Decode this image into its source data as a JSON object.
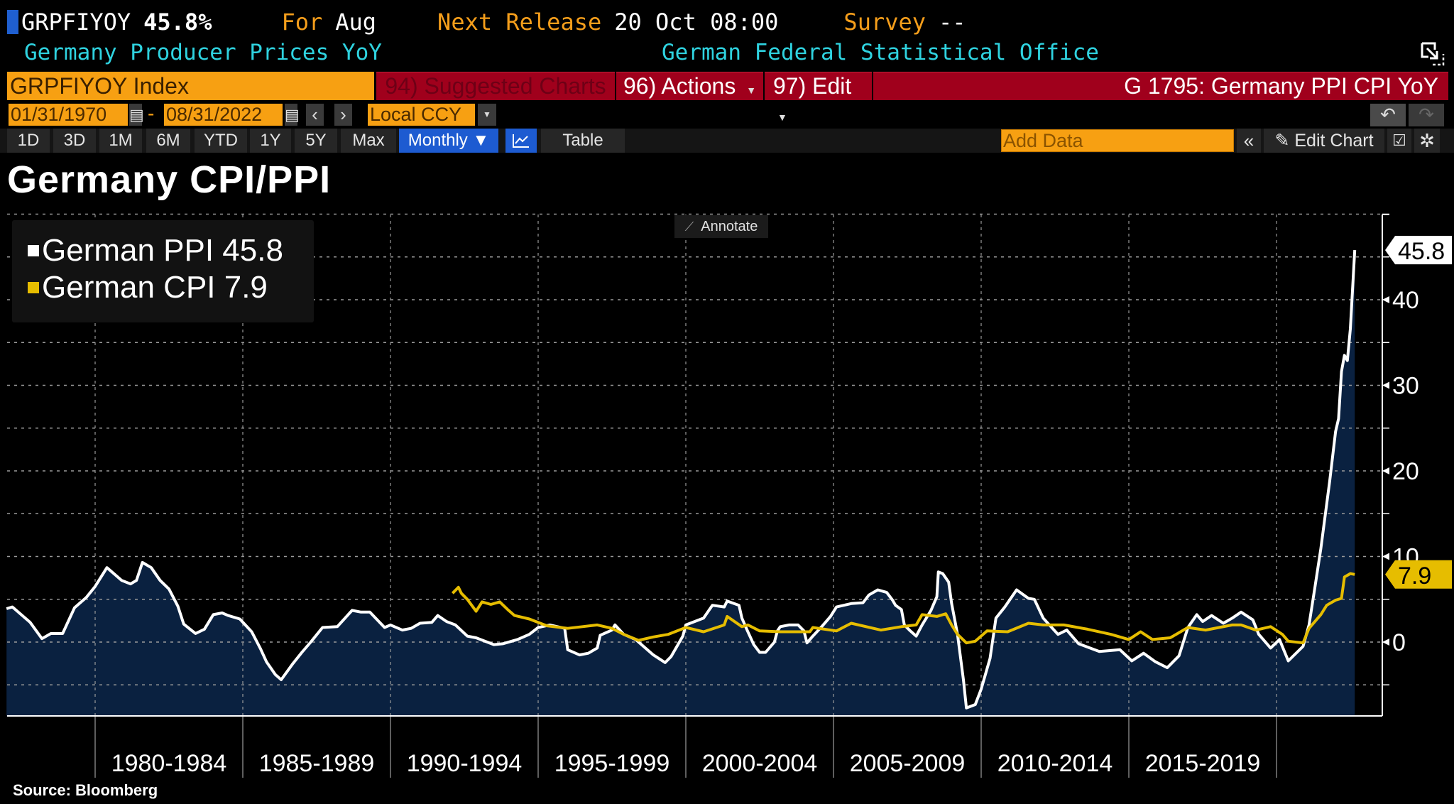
{
  "header": {
    "ticker": "GRPFIYOY",
    "last_value": "45.8%",
    "for_label": "For",
    "for_period": "Aug",
    "next_release_label": "Next Release",
    "next_release_value": "20 Oct 08:00",
    "survey_label": "Survey",
    "survey_value": "--",
    "description": "Germany Producer Prices YoY",
    "source_org": "German Federal Statistical Office"
  },
  "command_bar": {
    "security": "GRPFIYOY Index",
    "suggested_charts": "94) Suggested Charts",
    "actions": "96) Actions",
    "edit": "97) Edit",
    "chart_id_title": "G 1795: Germany PPI CPI YoY"
  },
  "date_bar": {
    "start_date": "01/31/1970",
    "separator": "-",
    "end_date": "08/31/2022",
    "currency": "Local CCY"
  },
  "period_bar": {
    "buttons": [
      "1D",
      "3D",
      "1M",
      "6M",
      "YTD",
      "1Y",
      "5Y",
      "Max"
    ],
    "frequency": "Monthly ▼",
    "table": "Table",
    "add_data_placeholder": "Add Data",
    "edit_chart": "Edit Chart"
  },
  "annotate": "Annotate",
  "source": "Source: Bloomberg",
  "colors": {
    "ppi": "#ffffff",
    "cpi": "#e6bd00",
    "fill": "#0a2140",
    "accent_orange": "#f7a012",
    "red_bar": "#a0001c",
    "blue_active": "#1d5bd1"
  },
  "chart_data": {
    "type": "line",
    "title": "Germany CPI/PPI",
    "xlabel": "",
    "ylabel": "",
    "xlim": [
      1977.0,
      2022.9
    ],
    "ylim": [
      -8.7,
      50
    ],
    "grid": true,
    "legend_position": "top-left",
    "x_tick_labels": [
      "1980-1984",
      "1985-1989",
      "1990-1994",
      "1995-1999",
      "2000-2004",
      "2005-2009",
      "2010-2014",
      "2015-2019"
    ],
    "x_tick_years": [
      1980,
      1985,
      1990,
      1995,
      2000,
      2005,
      2010,
      2015,
      2020
    ],
    "y_ticks": [
      0,
      10,
      20,
      30,
      40
    ],
    "y_grid": [
      -5,
      0,
      5,
      10,
      15,
      20,
      25,
      30,
      35,
      40,
      45,
      50
    ],
    "series": [
      {
        "name": "German PPI",
        "legend": "German PPI 45.8",
        "last_label": "45.8",
        "filled": true,
        "x": [
          1977.0,
          1977.2,
          1977.8,
          1978.2,
          1978.5,
          1978.9,
          1979.3,
          1979.7,
          1980.0,
          1980.4,
          1980.7,
          1980.9,
          1981.2,
          1981.4,
          1981.6,
          1981.9,
          1982.2,
          1982.5,
          1982.8,
          1983.0,
          1983.4,
          1983.7,
          1984.0,
          1984.3,
          1984.5,
          1984.9,
          1985.3,
          1985.6,
          1985.8,
          1986.1,
          1986.3,
          1986.7,
          1987.0,
          1987.3,
          1987.7,
          1988.2,
          1988.7,
          1989.0,
          1989.3,
          1989.8,
          1990.0,
          1990.4,
          1990.7,
          1991.0,
          1991.4,
          1991.6,
          1991.9,
          1992.2,
          1992.6,
          1992.9,
          1993.5,
          1993.8,
          1994.3,
          1994.7,
          1995.0,
          1995.4,
          1995.9,
          1996.0,
          1996.4,
          1996.7,
          1997.0,
          1997.1,
          1997.5,
          1997.6,
          1997.9,
          1998.3,
          1998.9,
          1999.3,
          1999.5,
          1999.9,
          2000.0,
          2000.6,
          2000.9,
          2001.3,
          2001.4,
          2001.8,
          2001.9,
          2002.1,
          2002.3,
          2002.5,
          2002.7,
          2003.0,
          2003.1,
          2003.2,
          2003.5,
          2003.8,
          2004.0,
          2004.1,
          2004.3,
          2004.6,
          2004.9,
          2005.1,
          2005.6,
          2006.0,
          2006.2,
          2006.5,
          2006.8,
          2007.0,
          2007.1,
          2007.3,
          2007.4,
          2007.6,
          2007.8,
          2008.0,
          2008.3,
          2008.5,
          2008.55,
          2008.7,
          2008.9,
          2009.0,
          2009.2,
          2009.4,
          2009.5,
          2009.8,
          2010.0,
          2010.3,
          2010.5,
          2010.8,
          2011.2,
          2011.6,
          2011.8,
          2012.1,
          2012.6,
          2012.9,
          2013.3,
          2014.0,
          2014.7,
          2015.1,
          2015.5,
          2015.9,
          2016.3,
          2016.7,
          2017.0,
          2017.3,
          2017.5,
          2017.8,
          2018.2,
          2018.5,
          2018.8,
          2019.2,
          2019.4,
          2019.8,
          2020.1,
          2020.4,
          2020.9,
          2021.1,
          2021.3,
          2021.5,
          2021.8,
          2022.0,
          2022.1,
          2022.2,
          2022.3,
          2022.4,
          2022.5,
          2022.65
        ],
        "values": [
          3.9,
          4.1,
          2.3,
          0.4,
          1.0,
          1.0,
          4.0,
          5.2,
          6.5,
          8.7,
          7.8,
          7.2,
          6.8,
          7.2,
          9.3,
          8.7,
          7.2,
          6.2,
          4.2,
          2.1,
          1.0,
          1.5,
          3.2,
          3.4,
          3.1,
          2.7,
          1.2,
          -0.8,
          -2.3,
          -3.8,
          -4.4,
          -2.5,
          -1.2,
          0.0,
          1.7,
          1.8,
          3.7,
          3.5,
          3.5,
          1.7,
          2.0,
          1.4,
          1.6,
          2.2,
          2.3,
          3.1,
          2.4,
          2.0,
          0.7,
          0.5,
          -0.3,
          -0.2,
          0.3,
          0.9,
          1.7,
          2.0,
          1.6,
          -0.9,
          -1.5,
          -1.3,
          -0.7,
          0.8,
          1.4,
          2.0,
          0.9,
          0.3,
          -1.5,
          -2.4,
          -1.7,
          0.7,
          2.0,
          2.8,
          4.3,
          4.1,
          4.8,
          4.3,
          2.8,
          1.2,
          -0.3,
          -1.2,
          -1.2,
          0.0,
          1.3,
          1.8,
          2.0,
          2.0,
          1.3,
          -0.1,
          0.7,
          1.8,
          3.0,
          4.1,
          4.5,
          4.6,
          5.5,
          6.1,
          5.8,
          4.9,
          4.3,
          3.8,
          2.0,
          1.3,
          0.7,
          2.0,
          3.7,
          5.3,
          8.2,
          8.0,
          7.0,
          4.5,
          0.9,
          -4.4,
          -7.7,
          -7.3,
          -5.5,
          -1.9,
          2.8,
          4.1,
          6.1,
          5.1,
          5.0,
          2.8,
          0.9,
          1.4,
          -0.2,
          -1.1,
          -0.9,
          -2.2,
          -1.3,
          -2.3,
          -3.0,
          -1.6,
          1.7,
          3.2,
          2.4,
          3.1,
          2.2,
          2.8,
          3.5,
          2.6,
          0.9,
          -0.7,
          0.3,
          -2.2,
          -0.5,
          2.0,
          6.4,
          10.9,
          18.8,
          24.6,
          26.1,
          31.6,
          33.5,
          32.9,
          36.6,
          45.8
        ]
      },
      {
        "name": "German CPI",
        "legend": "German CPI 7.9",
        "last_label": "7.9",
        "filled": false,
        "x": [
          1992.1,
          1992.3,
          1992.4,
          1992.6,
          1992.9,
          1993.1,
          1993.4,
          1993.7,
          1994.0,
          1994.2,
          1994.7,
          1995.3,
          1996.0,
          1996.5,
          1997.0,
          1997.5,
          1997.9,
          1998.4,
          1998.9,
          1999.4,
          2000.0,
          2000.6,
          2001.3,
          2001.4,
          2001.9,
          2002.1,
          2002.5,
          2003.2,
          2004.2,
          2004.3,
          2005.1,
          2005.6,
          2006.6,
          2007.3,
          2007.8,
          2008.0,
          2008.5,
          2008.8,
          2009.0,
          2009.2,
          2009.5,
          2009.8,
          2010.2,
          2010.9,
          2011.6,
          2012.1,
          2012.8,
          2013.6,
          2014.4,
          2015.0,
          2015.4,
          2015.8,
          2016.4,
          2017.0,
          2017.6,
          2018.5,
          2018.8,
          2019.3,
          2019.8,
          2020.2,
          2020.4,
          2020.9,
          2021.1,
          2021.5,
          2021.7,
          2022.0,
          2022.2,
          2022.3,
          2022.5,
          2022.65
        ],
        "values": [
          5.7,
          6.4,
          5.7,
          5.0,
          3.6,
          4.7,
          4.4,
          4.7,
          3.7,
          3.1,
          2.7,
          1.9,
          1.6,
          1.8,
          2.0,
          1.6,
          0.9,
          0.2,
          0.6,
          0.9,
          1.7,
          1.2,
          2.0,
          3.0,
          1.8,
          2.0,
          1.3,
          1.2,
          1.2,
          1.7,
          1.3,
          2.2,
          1.4,
          1.8,
          2.0,
          3.2,
          3.0,
          3.3,
          2.0,
          0.9,
          -0.1,
          0.1,
          1.3,
          1.2,
          2.2,
          2.0,
          2.0,
          1.5,
          0.9,
          0.3,
          1.2,
          0.3,
          0.5,
          1.7,
          1.4,
          2.0,
          2.0,
          1.4,
          1.8,
          0.9,
          0.1,
          -0.1,
          1.6,
          3.2,
          4.3,
          4.9,
          5.1,
          7.6,
          8.0,
          7.9
        ]
      }
    ]
  }
}
